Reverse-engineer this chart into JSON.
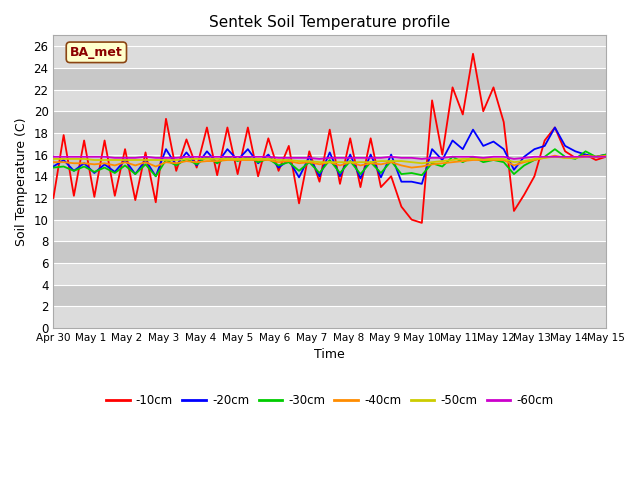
{
  "title": "Sentek Soil Temperature profile",
  "xlabel": "Time",
  "ylabel": "Soil Temperature (C)",
  "annotation": "BA_met",
  "ylim": [
    0,
    27
  ],
  "yticks": [
    0,
    2,
    4,
    6,
    8,
    10,
    12,
    14,
    16,
    18,
    20,
    22,
    24,
    26
  ],
  "x_labels": [
    "Apr 30",
    "May 1",
    "May 2",
    "May 3",
    "May 4",
    "May 5",
    "May 6",
    "May 7",
    "May 8",
    "May 9",
    "May 10",
    "May 11",
    "May 12",
    "May 13",
    "May 14",
    "May 15"
  ],
  "colors": {
    "-10cm": "#ff0000",
    "-20cm": "#0000ff",
    "-30cm": "#00cc00",
    "-40cm": "#ff8c00",
    "-50cm": "#cccc00",
    "-60cm": "#cc00cc"
  },
  "bg_color": "#dcdcdc",
  "band_color": "#c8c8c8",
  "series": {
    "-10cm": [
      12.0,
      17.8,
      12.2,
      17.3,
      12.1,
      17.3,
      12.2,
      16.5,
      11.8,
      16.2,
      11.6,
      19.3,
      14.5,
      17.4,
      14.8,
      18.5,
      14.1,
      18.5,
      14.2,
      18.5,
      14.0,
      17.5,
      14.5,
      16.8,
      11.5,
      16.3,
      13.5,
      18.3,
      13.3,
      17.5,
      13.0,
      17.5,
      13.0,
      14.0,
      11.2,
      10.0,
      9.7,
      21.0,
      16.0,
      22.2,
      19.7,
      25.3,
      20.0,
      22.2,
      19.0,
      10.8,
      12.3,
      14.0,
      17.3,
      18.5,
      16.3,
      15.7,
      16.0,
      15.5,
      15.8
    ],
    "-20cm": [
      14.9,
      15.5,
      14.5,
      15.2,
      14.3,
      15.1,
      14.4,
      15.5,
      14.2,
      15.5,
      14.0,
      16.5,
      15.0,
      16.2,
      15.0,
      16.3,
      15.2,
      16.5,
      15.5,
      16.5,
      15.2,
      16.0,
      14.8,
      15.5,
      13.9,
      15.8,
      14.0,
      16.2,
      14.0,
      16.0,
      13.8,
      16.0,
      13.9,
      16.0,
      13.5,
      13.5,
      13.3,
      16.5,
      15.5,
      17.3,
      16.5,
      18.3,
      16.8,
      17.2,
      16.5,
      14.6,
      15.8,
      16.5,
      16.8,
      18.5,
      16.8,
      16.3,
      16.0,
      15.8,
      16.0
    ],
    "-30cm": [
      14.8,
      14.9,
      14.5,
      14.9,
      14.4,
      14.8,
      14.3,
      15.0,
      14.2,
      15.1,
      14.0,
      15.5,
      15.0,
      15.6,
      15.1,
      15.8,
      15.2,
      15.8,
      15.4,
      15.8,
      15.3,
      15.6,
      15.0,
      15.3,
      14.5,
      15.3,
      14.3,
      15.5,
      14.3,
      15.4,
      14.2,
      15.3,
      14.3,
      15.4,
      14.2,
      14.3,
      14.1,
      15.2,
      14.9,
      15.8,
      15.3,
      15.8,
      15.3,
      15.5,
      15.3,
      14.2,
      15.0,
      15.5,
      15.8,
      16.5,
      15.8,
      15.6,
      16.3,
      15.8,
      16.0
    ],
    "-40cm": [
      15.3,
      15.3,
      15.2,
      15.2,
      15.1,
      15.2,
      15.0,
      15.3,
      15.0,
      15.3,
      14.9,
      15.3,
      15.2,
      15.4,
      15.3,
      15.4,
      15.4,
      15.5,
      15.5,
      15.5,
      15.5,
      15.5,
      15.3,
      15.4,
      15.2,
      15.3,
      15.1,
      15.3,
      15.0,
      15.3,
      15.0,
      15.2,
      15.1,
      15.3,
      15.0,
      14.8,
      14.9,
      15.1,
      15.2,
      15.3,
      15.4,
      15.5,
      15.5,
      15.5,
      15.5,
      15.0,
      15.3,
      15.5,
      15.7,
      15.9,
      15.7,
      15.7,
      15.9,
      15.8,
      15.9
    ],
    "-50cm": [
      15.6,
      15.6,
      15.6,
      15.6,
      15.5,
      15.5,
      15.5,
      15.5,
      15.5,
      15.5,
      15.5,
      15.5,
      15.5,
      15.6,
      15.6,
      15.6,
      15.6,
      15.6,
      15.6,
      15.6,
      15.6,
      15.6,
      15.5,
      15.5,
      15.4,
      15.4,
      15.3,
      15.3,
      15.3,
      15.3,
      15.3,
      15.3,
      15.4,
      15.4,
      15.4,
      15.3,
      15.2,
      15.3,
      15.4,
      15.5,
      15.6,
      15.6,
      15.6,
      15.6,
      15.6,
      15.3,
      15.4,
      15.6,
      15.7,
      15.8,
      15.7,
      15.7,
      15.8,
      15.8,
      15.8
    ],
    "-60cm": [
      15.8,
      15.8,
      15.8,
      15.8,
      15.8,
      15.8,
      15.7,
      15.7,
      15.7,
      15.8,
      15.7,
      15.7,
      15.7,
      15.8,
      15.8,
      15.8,
      15.8,
      15.8,
      15.8,
      15.8,
      15.8,
      15.8,
      15.7,
      15.7,
      15.7,
      15.7,
      15.6,
      15.7,
      15.7,
      15.7,
      15.7,
      15.7,
      15.7,
      15.8,
      15.7,
      15.7,
      15.6,
      15.7,
      15.7,
      15.8,
      15.8,
      15.8,
      15.7,
      15.8,
      15.8,
      15.6,
      15.7,
      15.8,
      15.8,
      15.8,
      15.8,
      15.8,
      15.8,
      15.8,
      15.8
    ]
  }
}
